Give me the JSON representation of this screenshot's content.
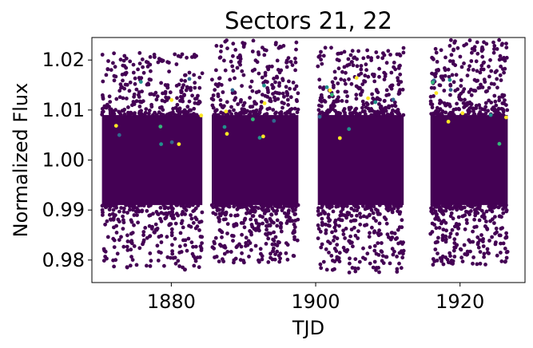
{
  "chart_data": {
    "type": "scatter",
    "title": "Sectors 21, 22",
    "xlabel": "TJD",
    "ylabel": "Normalized Flux",
    "xlim": [
      1869.0,
      1929.0
    ],
    "ylim": [
      0.9755,
      1.0245
    ],
    "xticks": [
      1880,
      1900,
      1920
    ],
    "yticks": [
      0.98,
      0.99,
      1.0,
      1.01,
      1.02
    ],
    "xtick_labels": [
      "1880",
      "1900",
      "1920"
    ],
    "ytick_labels": [
      "0.98",
      "0.99",
      "1.00",
      "1.01",
      "1.02"
    ],
    "grid": false,
    "legend": false,
    "colormap": "viridis",
    "colors": {
      "dominant": "#440154",
      "minor": [
        "#31688e",
        "#21918c",
        "#35b779",
        "#fde725"
      ]
    },
    "segments": [
      {
        "x_start": 1870.4,
        "x_end": 1884.3,
        "core_low": 0.991,
        "core_high": 1.009,
        "min": 0.978,
        "max": 1.0215
      },
      {
        "x_start": 1885.6,
        "x_end": 1897.6,
        "core_low": 0.991,
        "core_high": 1.009,
        "min": 0.9795,
        "max": 1.024
      },
      {
        "x_start": 1900.3,
        "x_end": 1912.2,
        "core_low": 0.991,
        "core_high": 1.009,
        "min": 0.9775,
        "max": 1.0225
      },
      {
        "x_start": 1915.9,
        "x_end": 1926.6,
        "core_low": 0.991,
        "core_high": 1.009,
        "min": 0.979,
        "max": 1.024
      }
    ]
  }
}
